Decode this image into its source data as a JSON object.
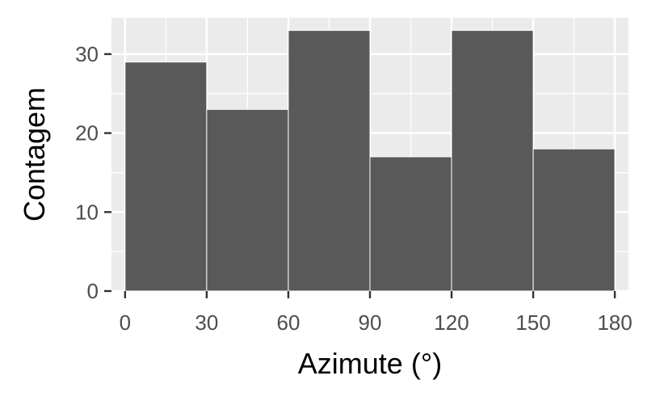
{
  "chart_data": {
    "type": "bar",
    "subtype": "histogram",
    "bins": [
      {
        "start": 0,
        "end": 30,
        "count": 29
      },
      {
        "start": 30,
        "end": 60,
        "count": 23
      },
      {
        "start": 60,
        "end": 90,
        "count": 33
      },
      {
        "start": 90,
        "end": 120,
        "count": 17
      },
      {
        "start": 120,
        "end": 150,
        "count": 33
      },
      {
        "start": 150,
        "end": 180,
        "count": 18
      }
    ],
    "xlabel": "Azimute (°)",
    "ylabel": "Contagem",
    "xlim": [
      -5,
      185
    ],
    "ylim": [
      0,
      34.6
    ],
    "xticks": [
      0,
      30,
      60,
      90,
      120,
      150,
      180
    ],
    "yticks": [
      0,
      10,
      20,
      30
    ],
    "grid": true,
    "colors": {
      "bar_fill": "#595959",
      "bar_edge": "#ffffff",
      "panel_bg": "#ebebeb",
      "grid": "#ffffff",
      "tick_text": "#4d4d4d",
      "tick_mark": "#333333"
    }
  }
}
